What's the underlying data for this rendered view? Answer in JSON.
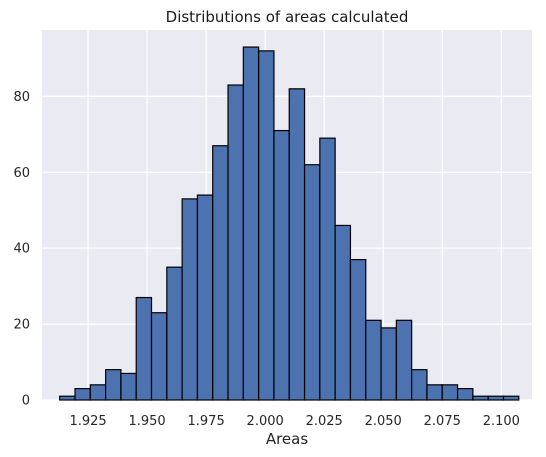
{
  "chart_data": {
    "type": "bar",
    "title": "Distributions of areas calculated",
    "xlabel": "Areas",
    "ylabel": "",
    "xlim": [
      1.9055,
      2.113
    ],
    "ylim": [
      0,
      97.5
    ],
    "grid": true,
    "colors": {
      "background": "#eaeaf2",
      "grid": "#ffffff",
      "bar_fill": "#4c72b0",
      "bar_edge": "#000000"
    },
    "x_ticks": [
      1.925,
      1.95,
      1.975,
      2.0,
      2.025,
      2.05,
      2.075,
      2.1
    ],
    "x_tick_labels": [
      "1.925",
      "1.950",
      "1.975",
      "2.000",
      "2.025",
      "2.050",
      "2.075",
      "2.100"
    ],
    "y_ticks": [
      0,
      20,
      40,
      60,
      80
    ],
    "y_tick_labels": [
      "0",
      "20",
      "40",
      "60",
      "80"
    ],
    "bins": {
      "start": 1.913,
      "width": 0.00648
    },
    "values": [
      1,
      3,
      4,
      8,
      7,
      27,
      23,
      35,
      53,
      54,
      67,
      83,
      93,
      92,
      71,
      82,
      62,
      69,
      46,
      37,
      21,
      19,
      21,
      8,
      4,
      4,
      3,
      1,
      1,
      1
    ]
  }
}
